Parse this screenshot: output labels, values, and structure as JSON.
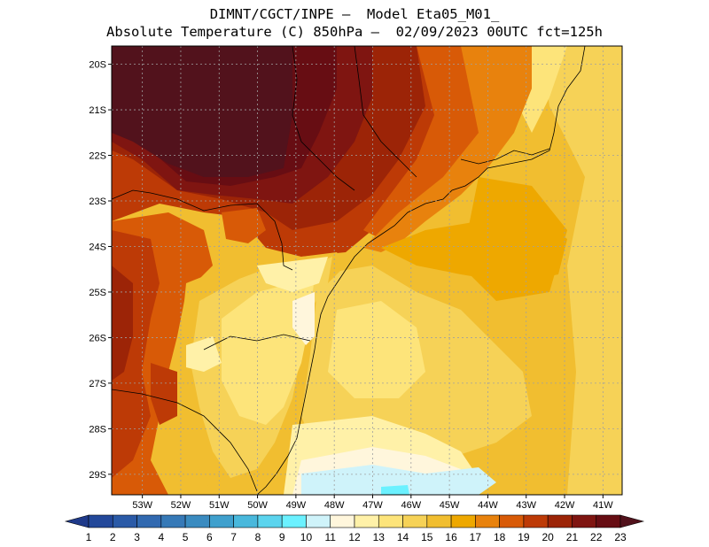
{
  "header": {
    "line1": "DIMNT/CGCT/INPE –  Model Eta05_M01_",
    "line2": "Absolute Temperature (C) 850hPa –  02/09/2023 00UTC fct=125h"
  },
  "map": {
    "lon_range": [
      -53.8,
      -40.5
    ],
    "lat_range": [
      -29.45,
      -19.6
    ],
    "lat_ticks": [
      {
        "label": "20S",
        "value": -20
      },
      {
        "label": "21S",
        "value": -21
      },
      {
        "label": "22S",
        "value": -22
      },
      {
        "label": "23S",
        "value": -23
      },
      {
        "label": "24S",
        "value": -24
      },
      {
        "label": "25S",
        "value": -25
      },
      {
        "label": "26S",
        "value": -26
      },
      {
        "label": "27S",
        "value": -27
      },
      {
        "label": "28S",
        "value": -28
      },
      {
        "label": "29S",
        "value": -29
      }
    ],
    "lon_ticks": [
      {
        "label": "53W",
        "value": -53
      },
      {
        "label": "52W",
        "value": -52
      },
      {
        "label": "51W",
        "value": -51
      },
      {
        "label": "50W",
        "value": -50
      },
      {
        "label": "49W",
        "value": -49
      },
      {
        "label": "48W",
        "value": -48
      },
      {
        "label": "47W",
        "value": -47
      },
      {
        "label": "46W",
        "value": -46
      },
      {
        "label": "45W",
        "value": -45
      },
      {
        "label": "44W",
        "value": -44
      },
      {
        "label": "43W",
        "value": -43
      },
      {
        "label": "42W",
        "value": -42
      },
      {
        "label": "41W",
        "value": -41
      }
    ],
    "grid": true
  },
  "colorbar": {
    "labels": [
      "1",
      "2",
      "3",
      "4",
      "5",
      "6",
      "7",
      "8",
      "9",
      "10",
      "11",
      "12",
      "13",
      "14",
      "15",
      "16",
      "17",
      "18",
      "19",
      "20",
      "21",
      "22",
      "23"
    ],
    "colors": [
      "#1f3a8a",
      "#23489a",
      "#2a5aa7",
      "#3169b0",
      "#3679b7",
      "#3a8bc0",
      "#3fa0cd",
      "#49b8dc",
      "#5bd4ee",
      "#6bf1ff",
      "#cff3fa",
      "#fff6dc",
      "#fff1a8",
      "#fde47a",
      "#f6d257",
      "#f1be30",
      "#eea800",
      "#e8820d",
      "#d85a07",
      "#bd3a06",
      "#9c2407",
      "#7f1511",
      "#670d13",
      "#52121c"
    ]
  }
}
